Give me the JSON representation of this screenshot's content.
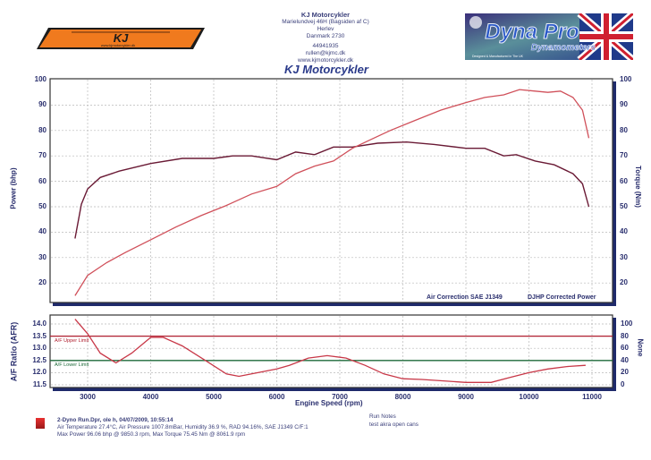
{
  "header": {
    "company": "KJ Motorcykler",
    "address_line1": "Marielundvej 46H (Bagsiden af C)",
    "address_line2": "Herlev",
    "address_line3": "Danmark 2730",
    "phone": "44941935",
    "email": "rullen@kjmc.dk",
    "website": "www.kjmotorcykler.dk",
    "chart_title": "KJ Motorcykler",
    "left_logo": {
      "text": "KJ",
      "subtext": "www.kjmotorcykler.dk",
      "color": "#f07a1e"
    },
    "right_logo": {
      "title": "Dyna Pro",
      "subtitle": "Dynamometers",
      "tagline": "Designed & Manufactured in The UK"
    }
  },
  "colors": {
    "power_line": "#d0505a",
    "torque_line": "#6a1a35",
    "afr_line": "#c83848",
    "upper_limit": "#b02030",
    "lower_limit": "#1e6a3a",
    "axis_text": "#2a2f6e",
    "frame_shadow": "#1f2a6b",
    "grid": "#b8b8b8"
  },
  "chart_data": [
    {
      "type": "line",
      "title": "KJ Motorcykler",
      "xlabel": "Engine Speed (rpm)",
      "ylabel": "Power (bhp)",
      "ylabel_right": "Torque (Nm)",
      "x_ticks": [
        3000,
        4000,
        5000,
        6000,
        7000,
        8000,
        9000,
        10000,
        11000
      ],
      "y_ticks": [
        20,
        30,
        40,
        50,
        60,
        70,
        80,
        90,
        100
      ],
      "y_ticks_right": [
        20,
        30,
        40,
        50,
        60,
        70,
        80,
        90,
        100
      ],
      "xlim": [
        2400,
        11350
      ],
      "ylim": [
        11,
        100
      ],
      "grid": true,
      "annotations": [
        "Air Correction SAE J1349",
        "DJHP Corrected Power"
      ],
      "series": [
        {
          "name": "Power (bhp)",
          "x": [
            2800,
            3000,
            3300,
            3600,
            4000,
            4400,
            4800,
            5200,
            5600,
            6000,
            6300,
            6600,
            6900,
            7200,
            7500,
            7800,
            8200,
            8600,
            9000,
            9300,
            9600,
            9850,
            10100,
            10300,
            10500,
            10700,
            10850,
            10950
          ],
          "y": [
            15,
            23,
            28,
            32,
            37,
            42,
            46.5,
            50.5,
            55,
            58,
            63,
            66,
            68,
            73,
            76.5,
            80,
            84,
            88,
            91,
            93,
            94,
            96.1,
            95.5,
            95,
            95.5,
            93,
            88,
            77
          ]
        },
        {
          "name": "Torque (Nm)",
          "x": [
            2800,
            2900,
            3000,
            3200,
            3500,
            4000,
            4500,
            5000,
            5300,
            5600,
            6000,
            6300,
            6600,
            6900,
            7200,
            7600,
            8060,
            8500,
            9000,
            9300,
            9600,
            9800,
            10100,
            10400,
            10700,
            10850,
            10950
          ],
          "y": [
            37.5,
            51,
            57,
            61.5,
            64,
            67,
            69,
            69,
            70,
            70,
            68.5,
            71.5,
            70.5,
            73.5,
            73.5,
            75,
            75.45,
            74.5,
            73,
            73,
            70,
            70.5,
            68,
            66.5,
            63,
            59,
            50
          ]
        }
      ]
    },
    {
      "type": "line",
      "xlabel": "Engine Speed (rpm)",
      "ylabel": "A/F Ratio (AFR)",
      "ylabel_right": "None",
      "x_ticks": [
        3000,
        4000,
        5000,
        6000,
        7000,
        8000,
        9000,
        10000,
        11000
      ],
      "y_ticks": [
        11.5,
        12.0,
        12.5,
        13.0,
        13.5,
        14.0
      ],
      "y_ticks_right": [
        0,
        20,
        40,
        60,
        80,
        100
      ],
      "ylim": [
        11.4,
        14.2
      ],
      "grid": true,
      "reference_lines": [
        {
          "label": "A/F Upper Limit",
          "value": 13.5
        },
        {
          "label": "A/F Lower Limit",
          "value": 12.5
        }
      ],
      "series": [
        {
          "name": "AFR",
          "x": [
            2800,
            3000,
            3200,
            3450,
            3700,
            4000,
            4200,
            4500,
            4900,
            5200,
            5400,
            5700,
            6000,
            6200,
            6500,
            6800,
            7100,
            7400,
            7700,
            8000,
            8300,
            8700,
            9000,
            9400,
            9700,
            10000,
            10300,
            10600,
            10900
          ],
          "y": [
            14.2,
            13.6,
            12.8,
            12.4,
            12.8,
            13.45,
            13.45,
            13.1,
            12.45,
            11.95,
            11.85,
            12.0,
            12.15,
            12.3,
            12.6,
            12.7,
            12.6,
            12.3,
            11.95,
            11.75,
            11.72,
            11.65,
            11.6,
            11.6,
            11.8,
            12.0,
            12.15,
            12.25,
            12.3
          ]
        }
      ]
    }
  ],
  "axes": {
    "power_label": "Power (bhp)",
    "torque_label": "Torque (Nm)",
    "afr_label": "A/F Ratio (AFR)",
    "none_label": "None",
    "x_label": "Engine Speed (rpm)",
    "x_ticks": [
      "3000",
      "4000",
      "5000",
      "6000",
      "7000",
      "8000",
      "9000",
      "10000",
      "11000"
    ],
    "power_ticks": [
      "100",
      "90",
      "80",
      "70",
      "60",
      "50",
      "40",
      "30",
      "20"
    ],
    "torque_ticks": [
      "100",
      "90",
      "80",
      "70",
      "60",
      "50",
      "40",
      "30",
      "20"
    ],
    "afr_ticks": [
      "14.0",
      "13.5",
      "13.0",
      "12.5",
      "12.0",
      "11.5"
    ],
    "none_ticks": [
      "100",
      "80",
      "60",
      "40",
      "20",
      "0"
    ],
    "upper_limit_label": "A/F Upper Limit",
    "lower_limit_label": "A/F Lower Limit",
    "correction_label": "Air Correction SAE J1349",
    "corrected_power_label": "DJHP Corrected Power"
  },
  "footer": {
    "run_line": "2-Dyno Run.Dpr,   ole h,   04/07/2009,   10:55:14",
    "conditions": "Air Temperature 27.4°C, Air Pressure 1007.8mBar, Humidity 36.9 %, RAD 94.16%,   SAE J1349  C/F:1",
    "max_line": "Max Power 96.06 bhp @ 9850.3 rpm, Max Torque 75.45 Nm @ 8061.9 rpm",
    "notes_label": "Run Notes",
    "notes_text": "test akra open cans"
  }
}
